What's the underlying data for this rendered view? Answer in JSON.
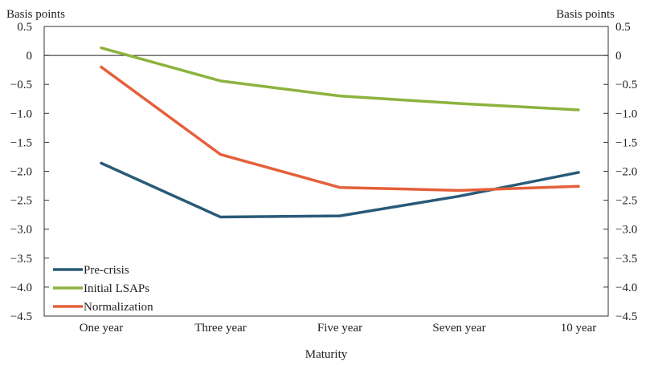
{
  "chart_data": {
    "type": "line",
    "title": "",
    "xlabel": "Maturity",
    "ylabel_left": "Basis points",
    "ylabel_right": "Basis points",
    "ylim": [
      -4.5,
      0.5
    ],
    "yticks": [
      0.5,
      0,
      -0.5,
      -1.0,
      -1.5,
      -2.0,
      -2.5,
      -3.0,
      -3.5,
      -4.0,
      -4.5
    ],
    "ytick_labels": [
      "0.5",
      "0",
      "−0.5",
      "−1.0",
      "−1.5",
      "−2.0",
      "−2.5",
      "−3.0",
      "−3.5",
      "−4.0",
      "−4.5"
    ],
    "categories": [
      "One year",
      "Three year",
      "Five year",
      "Seven year",
      "10 year"
    ],
    "series": [
      {
        "name": "Pre-crisis",
        "color": "#2a5a78",
        "values": [
          -1.86,
          -2.79,
          -2.77,
          -2.43,
          -2.02
        ]
      },
      {
        "name": "Initial LSAPs",
        "color": "#8cb33e",
        "values": [
          0.13,
          -0.44,
          -0.7,
          -0.83,
          -0.94
        ]
      },
      {
        "name": "Normalization",
        "color": "#e4603a",
        "values": [
          -0.2,
          -1.71,
          -2.28,
          -2.33,
          -2.26
        ]
      }
    ],
    "grid": false,
    "zero_line": true,
    "legend_position": "bottom-left"
  }
}
